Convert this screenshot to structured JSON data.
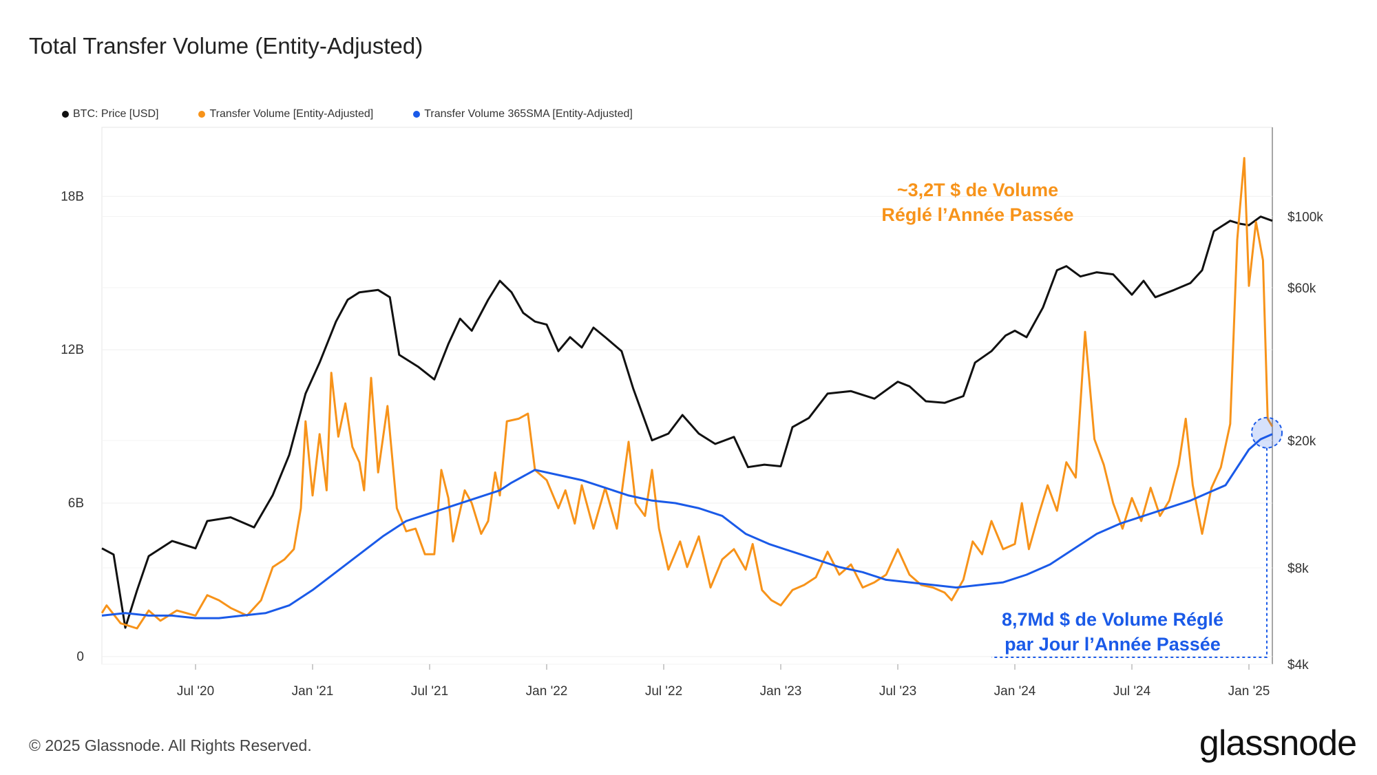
{
  "title": "Total Transfer Volume (Entity-Adjusted)",
  "legend": [
    {
      "label": "BTC: Price [USD]",
      "color": "#111111"
    },
    {
      "label": "Transfer Volume [Entity-Adjusted]",
      "color": "#f7931a"
    },
    {
      "label": "Transfer Volume 365SMA [Entity-Adjusted]",
      "color": "#1a5ae8"
    }
  ],
  "footer": "© 2025 Glassnode. All Rights Reserved.",
  "logo": "glassnode",
  "chart_data": {
    "type": "line",
    "title": "Total Transfer Volume (Entity-Adjusted)",
    "x_range": [
      2020.1,
      2025.1
    ],
    "y_left": {
      "ticks": [
        {
          "v": 0,
          "label": "0"
        },
        {
          "v": 6,
          "label": "6B"
        },
        {
          "v": 12,
          "label": "12B"
        },
        {
          "v": 18,
          "label": "18B"
        }
      ],
      "range": [
        -0.3,
        20.7
      ]
    },
    "y_right": {
      "scale": "log",
      "ticks": [
        {
          "v": 4000,
          "label": "$4k"
        },
        {
          "v": 8000,
          "label": "$8k"
        },
        {
          "v": 20000,
          "label": "$20k"
        },
        {
          "v": 60000,
          "label": "$60k"
        },
        {
          "v": 100000,
          "label": "$100k"
        }
      ],
      "range": [
        4000,
        190000
      ]
    },
    "x_ticks": [
      {
        "v": 2020.5,
        "label": "Jul '20"
      },
      {
        "v": 2021.0,
        "label": "Jan '21"
      },
      {
        "v": 2021.5,
        "label": "Jul '21"
      },
      {
        "v": 2022.0,
        "label": "Jan '22"
      },
      {
        "v": 2022.5,
        "label": "Jul '22"
      },
      {
        "v": 2023.0,
        "label": "Jan '23"
      },
      {
        "v": 2023.5,
        "label": "Jul '23"
      },
      {
        "v": 2024.0,
        "label": "Jan '24"
      },
      {
        "v": 2024.5,
        "label": "Jul '24"
      },
      {
        "v": 2025.0,
        "label": "Jan '25"
      }
    ],
    "series": [
      {
        "name": "BTC: Price [USD]",
        "axis": "right",
        "color": "#111111",
        "points": [
          [
            2020.1,
            9200
          ],
          [
            2020.15,
            8800
          ],
          [
            2020.2,
            5200
          ],
          [
            2020.25,
            6800
          ],
          [
            2020.3,
            8700
          ],
          [
            2020.4,
            9700
          ],
          [
            2020.5,
            9200
          ],
          [
            2020.55,
            11200
          ],
          [
            2020.65,
            11500
          ],
          [
            2020.75,
            10700
          ],
          [
            2020.83,
            13500
          ],
          [
            2020.9,
            18000
          ],
          [
            2020.97,
            28000
          ],
          [
            2021.03,
            35000
          ],
          [
            2021.1,
            47000
          ],
          [
            2021.15,
            55000
          ],
          [
            2021.2,
            58000
          ],
          [
            2021.28,
            59000
          ],
          [
            2021.33,
            56000
          ],
          [
            2021.37,
            37000
          ],
          [
            2021.45,
            34000
          ],
          [
            2021.52,
            31000
          ],
          [
            2021.58,
            40000
          ],
          [
            2021.63,
            48000
          ],
          [
            2021.68,
            44000
          ],
          [
            2021.75,
            55000
          ],
          [
            2021.8,
            63000
          ],
          [
            2021.85,
            58000
          ],
          [
            2021.9,
            50000
          ],
          [
            2021.95,
            47000
          ],
          [
            2022.0,
            46000
          ],
          [
            2022.05,
            38000
          ],
          [
            2022.1,
            42000
          ],
          [
            2022.15,
            39000
          ],
          [
            2022.2,
            45000
          ],
          [
            2022.25,
            42000
          ],
          [
            2022.32,
            38000
          ],
          [
            2022.37,
            29000
          ],
          [
            2022.45,
            20000
          ],
          [
            2022.52,
            21000
          ],
          [
            2022.58,
            24000
          ],
          [
            2022.65,
            21000
          ],
          [
            2022.72,
            19500
          ],
          [
            2022.8,
            20500
          ],
          [
            2022.86,
            16500
          ],
          [
            2022.93,
            16800
          ],
          [
            2023.0,
            16600
          ],
          [
            2023.05,
            22000
          ],
          [
            2023.12,
            23500
          ],
          [
            2023.2,
            28000
          ],
          [
            2023.3,
            28500
          ],
          [
            2023.4,
            27000
          ],
          [
            2023.5,
            30500
          ],
          [
            2023.55,
            29500
          ],
          [
            2023.62,
            26500
          ],
          [
            2023.7,
            26200
          ],
          [
            2023.78,
            27500
          ],
          [
            2023.83,
            35000
          ],
          [
            2023.9,
            38000
          ],
          [
            2023.96,
            42500
          ],
          [
            2024.0,
            44000
          ],
          [
            2024.05,
            42000
          ],
          [
            2024.12,
            52000
          ],
          [
            2024.18,
            68000
          ],
          [
            2024.22,
            70000
          ],
          [
            2024.28,
            65000
          ],
          [
            2024.35,
            67000
          ],
          [
            2024.42,
            66000
          ],
          [
            2024.5,
            57000
          ],
          [
            2024.55,
            63000
          ],
          [
            2024.6,
            56000
          ],
          [
            2024.68,
            59000
          ],
          [
            2024.75,
            62000
          ],
          [
            2024.8,
            68000
          ],
          [
            2024.85,
            90000
          ],
          [
            2024.92,
            97000
          ],
          [
            2024.96,
            95000
          ],
          [
            2025.0,
            94000
          ],
          [
            2025.05,
            100000
          ],
          [
            2025.1,
            97000
          ]
        ]
      },
      {
        "name": "Transfer Volume [Entity-Adjusted]",
        "axis": "left",
        "color": "#f7931a",
        "points": [
          [
            2020.1,
            1.7
          ],
          [
            2020.12,
            2.0
          ],
          [
            2020.18,
            1.3
          ],
          [
            2020.25,
            1.1
          ],
          [
            2020.3,
            1.8
          ],
          [
            2020.35,
            1.4
          ],
          [
            2020.42,
            1.8
          ],
          [
            2020.5,
            1.6
          ],
          [
            2020.55,
            2.4
          ],
          [
            2020.6,
            2.2
          ],
          [
            2020.65,
            1.9
          ],
          [
            2020.72,
            1.6
          ],
          [
            2020.78,
            2.2
          ],
          [
            2020.83,
            3.5
          ],
          [
            2020.88,
            3.8
          ],
          [
            2020.92,
            4.2
          ],
          [
            2020.95,
            5.8
          ],
          [
            2020.97,
            9.2
          ],
          [
            2021.0,
            6.3
          ],
          [
            2021.03,
            8.7
          ],
          [
            2021.06,
            6.5
          ],
          [
            2021.08,
            11.1
          ],
          [
            2021.11,
            8.6
          ],
          [
            2021.14,
            9.9
          ],
          [
            2021.17,
            8.2
          ],
          [
            2021.2,
            7.6
          ],
          [
            2021.22,
            6.5
          ],
          [
            2021.25,
            10.9
          ],
          [
            2021.28,
            7.2
          ],
          [
            2021.32,
            9.8
          ],
          [
            2021.36,
            5.8
          ],
          [
            2021.4,
            4.9
          ],
          [
            2021.44,
            5.0
          ],
          [
            2021.48,
            4.0
          ],
          [
            2021.52,
            4.0
          ],
          [
            2021.55,
            7.3
          ],
          [
            2021.58,
            6.2
          ],
          [
            2021.6,
            4.5
          ],
          [
            2021.65,
            6.5
          ],
          [
            2021.68,
            6.0
          ],
          [
            2021.72,
            4.8
          ],
          [
            2021.75,
            5.3
          ],
          [
            2021.78,
            7.2
          ],
          [
            2021.8,
            6.3
          ],
          [
            2021.83,
            9.2
          ],
          [
            2021.88,
            9.3
          ],
          [
            2021.92,
            9.5
          ],
          [
            2021.95,
            7.3
          ],
          [
            2022.0,
            6.9
          ],
          [
            2022.05,
            5.8
          ],
          [
            2022.08,
            6.5
          ],
          [
            2022.12,
            5.2
          ],
          [
            2022.15,
            6.7
          ],
          [
            2022.2,
            5.0
          ],
          [
            2022.25,
            6.6
          ],
          [
            2022.3,
            5.0
          ],
          [
            2022.35,
            8.4
          ],
          [
            2022.38,
            6.0
          ],
          [
            2022.42,
            5.5
          ],
          [
            2022.45,
            7.3
          ],
          [
            2022.48,
            5.0
          ],
          [
            2022.52,
            3.4
          ],
          [
            2022.57,
            4.5
          ],
          [
            2022.6,
            3.5
          ],
          [
            2022.65,
            4.7
          ],
          [
            2022.7,
            2.7
          ],
          [
            2022.75,
            3.8
          ],
          [
            2022.8,
            4.2
          ],
          [
            2022.85,
            3.4
          ],
          [
            2022.88,
            4.4
          ],
          [
            2022.92,
            2.6
          ],
          [
            2022.96,
            2.2
          ],
          [
            2023.0,
            2.0
          ],
          [
            2023.05,
            2.6
          ],
          [
            2023.1,
            2.8
          ],
          [
            2023.15,
            3.1
          ],
          [
            2023.2,
            4.1
          ],
          [
            2023.25,
            3.2
          ],
          [
            2023.3,
            3.6
          ],
          [
            2023.35,
            2.7
          ],
          [
            2023.4,
            2.9
          ],
          [
            2023.45,
            3.2
          ],
          [
            2023.5,
            4.2
          ],
          [
            2023.55,
            3.2
          ],
          [
            2023.6,
            2.8
          ],
          [
            2023.65,
            2.7
          ],
          [
            2023.7,
            2.5
          ],
          [
            2023.73,
            2.2
          ],
          [
            2023.78,
            3.0
          ],
          [
            2023.82,
            4.5
          ],
          [
            2023.86,
            4.0
          ],
          [
            2023.9,
            5.3
          ],
          [
            2023.95,
            4.2
          ],
          [
            2024.0,
            4.4
          ],
          [
            2024.03,
            6.0
          ],
          [
            2024.06,
            4.2
          ],
          [
            2024.1,
            5.5
          ],
          [
            2024.14,
            6.7
          ],
          [
            2024.18,
            5.7
          ],
          [
            2024.22,
            7.6
          ],
          [
            2024.26,
            7.0
          ],
          [
            2024.3,
            12.7
          ],
          [
            2024.34,
            8.5
          ],
          [
            2024.38,
            7.5
          ],
          [
            2024.42,
            6.0
          ],
          [
            2024.46,
            5.0
          ],
          [
            2024.5,
            6.2
          ],
          [
            2024.54,
            5.3
          ],
          [
            2024.58,
            6.6
          ],
          [
            2024.62,
            5.5
          ],
          [
            2024.66,
            6.1
          ],
          [
            2024.7,
            7.5
          ],
          [
            2024.73,
            9.3
          ],
          [
            2024.76,
            6.7
          ],
          [
            2024.8,
            4.8
          ],
          [
            2024.84,
            6.6
          ],
          [
            2024.88,
            7.4
          ],
          [
            2024.92,
            9.1
          ],
          [
            2024.95,
            16.3
          ],
          [
            2024.98,
            19.5
          ],
          [
            2025.0,
            14.5
          ],
          [
            2025.03,
            17.0
          ],
          [
            2025.06,
            15.5
          ],
          [
            2025.08,
            9.3
          ],
          [
            2025.1,
            9.0
          ]
        ]
      },
      {
        "name": "Transfer Volume 365SMA [Entity-Adjusted]",
        "axis": "left",
        "color": "#1a5ae8",
        "points": [
          [
            2020.1,
            1.6
          ],
          [
            2020.2,
            1.7
          ],
          [
            2020.3,
            1.6
          ],
          [
            2020.4,
            1.6
          ],
          [
            2020.5,
            1.5
          ],
          [
            2020.6,
            1.5
          ],
          [
            2020.7,
            1.6
          ],
          [
            2020.8,
            1.7
          ],
          [
            2020.9,
            2.0
          ],
          [
            2021.0,
            2.6
          ],
          [
            2021.1,
            3.3
          ],
          [
            2021.2,
            4.0
          ],
          [
            2021.3,
            4.7
          ],
          [
            2021.4,
            5.3
          ],
          [
            2021.5,
            5.6
          ],
          [
            2021.6,
            5.9
          ],
          [
            2021.7,
            6.2
          ],
          [
            2021.8,
            6.5
          ],
          [
            2021.85,
            6.8
          ],
          [
            2021.95,
            7.3
          ],
          [
            2022.05,
            7.1
          ],
          [
            2022.15,
            6.9
          ],
          [
            2022.25,
            6.6
          ],
          [
            2022.35,
            6.3
          ],
          [
            2022.45,
            6.1
          ],
          [
            2022.55,
            6.0
          ],
          [
            2022.65,
            5.8
          ],
          [
            2022.75,
            5.5
          ],
          [
            2022.85,
            4.8
          ],
          [
            2022.95,
            4.4
          ],
          [
            2023.05,
            4.1
          ],
          [
            2023.15,
            3.8
          ],
          [
            2023.25,
            3.5
          ],
          [
            2023.35,
            3.3
          ],
          [
            2023.45,
            3.0
          ],
          [
            2023.55,
            2.9
          ],
          [
            2023.65,
            2.8
          ],
          [
            2023.75,
            2.7
          ],
          [
            2023.85,
            2.8
          ],
          [
            2023.95,
            2.9
          ],
          [
            2024.05,
            3.2
          ],
          [
            2024.15,
            3.6
          ],
          [
            2024.25,
            4.2
          ],
          [
            2024.35,
            4.8
          ],
          [
            2024.45,
            5.2
          ],
          [
            2024.55,
            5.5
          ],
          [
            2024.65,
            5.8
          ],
          [
            2024.75,
            6.1
          ],
          [
            2024.85,
            6.5
          ],
          [
            2024.9,
            6.7
          ],
          [
            2024.95,
            7.4
          ],
          [
            2025.0,
            8.1
          ],
          [
            2025.05,
            8.5
          ],
          [
            2025.1,
            8.7
          ]
        ]
      }
    ],
    "annotations": [
      {
        "lines": [
          "~3,2T $ de Volume",
          "Réglé l’Année Passée"
        ],
        "color": "#f7931a"
      },
      {
        "lines": [
          "8,7Md $ de Volume Réglé",
          "par Jour l’Année Passée"
        ],
        "color": "#1a5ae8"
      }
    ]
  }
}
